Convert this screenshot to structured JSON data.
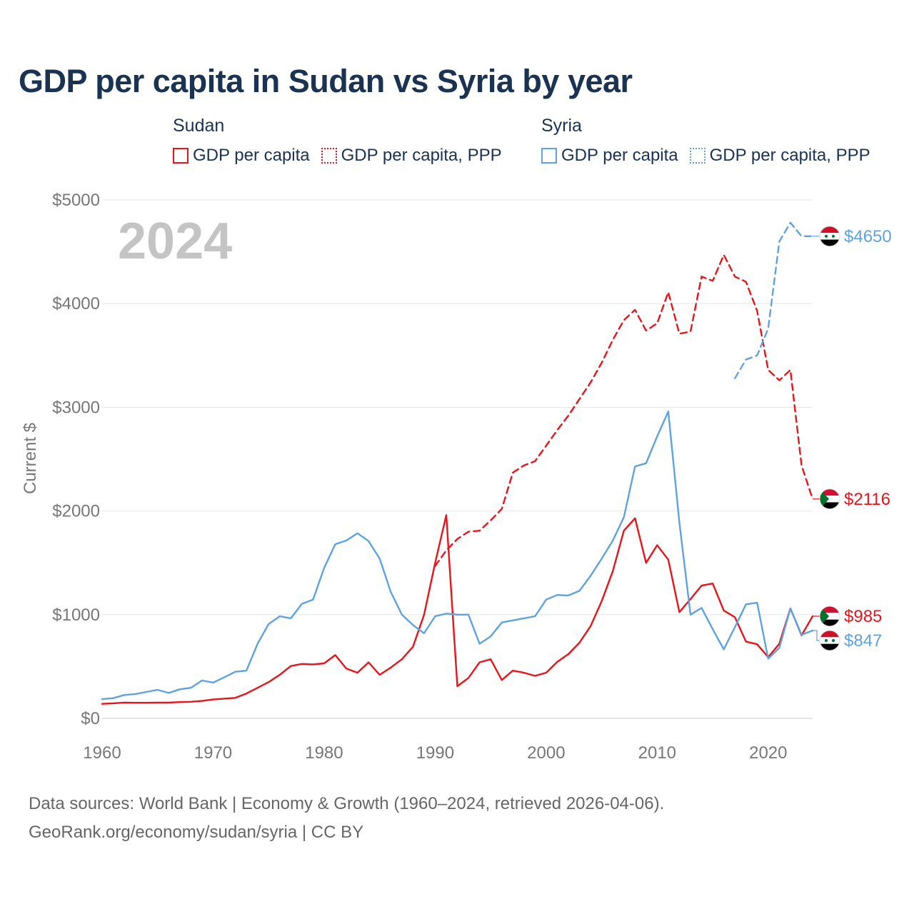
{
  "title": "GDP per capita in Sudan vs Syria by year",
  "legend": [
    {
      "country": "Sudan",
      "color": "#e8141c",
      "items": [
        {
          "label": "GDP per capita",
          "style": "solid"
        },
        {
          "label": "GDP per capita, PPP",
          "style": "dotted"
        }
      ]
    },
    {
      "country": "Syria",
      "color": "#5ea3e0",
      "items": [
        {
          "label": "GDP per capita",
          "style": "solid"
        },
        {
          "label": "GDP per capita, PPP",
          "style": "dotted"
        }
      ]
    }
  ],
  "year_watermark": "2024",
  "source": {
    "line1": "Data sources: World Bank | Economy & Growth (1960–2024, retrieved 2026-04-06).",
    "line2": "GeoRank.org/economy/sudan/syria | CC BY"
  },
  "chart_data": {
    "type": "line",
    "ylabel": "Current $",
    "xlabel": "",
    "xlim": [
      1960,
      2024
    ],
    "ylim": [
      0,
      5000
    ],
    "x_ticks": [
      1960,
      1970,
      1980,
      1990,
      2000,
      2010,
      2020
    ],
    "x_tick_labels": [
      "1960",
      "1970",
      "1980",
      "1990",
      "2000",
      "2010",
      "2020"
    ],
    "y_ticks": [
      0,
      1000,
      2000,
      3000,
      4000,
      5000
    ],
    "y_tick_labels": [
      "$0",
      "$1000",
      "$2000",
      "$3000",
      "$4000",
      "$5000"
    ],
    "grid": true,
    "series": [
      {
        "name": "Sudan GDP per capita",
        "country": "Sudan",
        "dash": "solid",
        "color": "#e8141c",
        "x": [
          1960,
          1961,
          1962,
          1963,
          1964,
          1965,
          1966,
          1967,
          1968,
          1969,
          1970,
          1971,
          1972,
          1973,
          1974,
          1975,
          1976,
          1977,
          1978,
          1979,
          1980,
          1981,
          1982,
          1983,
          1984,
          1985,
          1986,
          1987,
          1988,
          1989,
          1990,
          1991,
          1992,
          1993,
          1994,
          1995,
          1996,
          1997,
          1998,
          1999,
          2000,
          2001,
          2002,
          2003,
          2004,
          2005,
          2006,
          2007,
          2008,
          2009,
          2010,
          2011,
          2012,
          2013,
          2014,
          2015,
          2016,
          2017,
          2018,
          2019,
          2020,
          2021,
          2022,
          2023,
          2024
        ],
        "values": [
          140,
          145,
          152,
          150,
          150,
          152,
          152,
          157,
          160,
          168,
          182,
          190,
          198,
          240,
          295,
          350,
          420,
          505,
          525,
          520,
          530,
          610,
          480,
          440,
          540,
          420,
          490,
          570,
          690,
          1000,
          1500,
          1960,
          310,
          390,
          540,
          570,
          370,
          460,
          440,
          410,
          440,
          545,
          620,
          730,
          890,
          1130,
          1420,
          1810,
          1930,
          1500,
          1670,
          1530,
          1025,
          1150,
          1280,
          1300,
          1040,
          975,
          740,
          715,
          590,
          720,
          1060,
          800,
          985
        ],
        "end_label": "$985"
      },
      {
        "name": "Sudan GDP per capita, PPP",
        "country": "Sudan",
        "dash": "dashed",
        "color": "#e8141c",
        "x": [
          1990,
          1991,
          1992,
          1993,
          1994,
          1995,
          1996,
          1997,
          1998,
          1999,
          2000,
          2001,
          2002,
          2003,
          2004,
          2005,
          2006,
          2007,
          2008,
          2009,
          2010,
          2011,
          2012,
          2013,
          2014,
          2015,
          2016,
          2017,
          2018,
          2019,
          2020,
          2021,
          2022,
          2023,
          2024
        ],
        "values": [
          1470,
          1620,
          1730,
          1800,
          1810,
          1910,
          2020,
          2370,
          2440,
          2480,
          2630,
          2780,
          2920,
          3080,
          3240,
          3430,
          3650,
          3840,
          3940,
          3740,
          3810,
          4110,
          3710,
          3730,
          4260,
          4220,
          4470,
          4260,
          4210,
          3930,
          3360,
          3260,
          3360,
          2440,
          2116
        ],
        "end_label": "$2116"
      },
      {
        "name": "Syria GDP per capita",
        "country": "Syria",
        "dash": "solid",
        "color": "#5ea3e0",
        "x": [
          1960,
          1961,
          1962,
          1963,
          1964,
          1965,
          1966,
          1967,
          1968,
          1969,
          1970,
          1971,
          1972,
          1973,
          1974,
          1975,
          1976,
          1977,
          1978,
          1979,
          1980,
          1981,
          1982,
          1983,
          1984,
          1985,
          1986,
          1987,
          1988,
          1989,
          1990,
          1991,
          1992,
          1993,
          1994,
          1995,
          1996,
          1997,
          1998,
          1999,
          2000,
          2001,
          2002,
          2003,
          2004,
          2005,
          2006,
          2007,
          2008,
          2009,
          2010,
          2011,
          2012,
          2013,
          2014,
          2015,
          2016,
          2017,
          2018,
          2019,
          2020,
          2021,
          2022,
          2023,
          2024
        ],
        "values": [
          185,
          195,
          225,
          235,
          255,
          275,
          245,
          280,
          295,
          365,
          345,
          395,
          450,
          460,
          720,
          910,
          985,
          965,
          1105,
          1145,
          1450,
          1680,
          1715,
          1785,
          1710,
          1540,
          1220,
          1000,
          900,
          820,
          985,
          1010,
          1000,
          1000,
          720,
          790,
          925,
          945,
          965,
          985,
          1145,
          1190,
          1185,
          1230,
          1375,
          1540,
          1715,
          1940,
          2430,
          2460,
          2720,
          2960,
          1890,
          1000,
          1065,
          860,
          665,
          880,
          1100,
          1115,
          575,
          680,
          1060,
          805,
          847
        ],
        "end_label": "$847"
      },
      {
        "name": "Syria GDP per capita, PPP",
        "country": "Syria",
        "dash": "dashed",
        "color": "#5ea3e0",
        "x": [
          2017,
          2018,
          2019,
          2020,
          2021,
          2022,
          2023,
          2024
        ],
        "values": [
          3280,
          3460,
          3500,
          3760,
          4600,
          4780,
          4650,
          4650
        ],
        "end_label": "$4650"
      }
    ]
  }
}
